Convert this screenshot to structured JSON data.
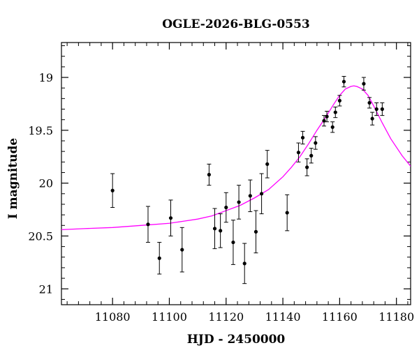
{
  "chart_data": {
    "type": "scatter",
    "title": "OGLE-2026-BLG-0553",
    "xlabel": "HJD - 2450000",
    "ylabel": "I magnitude",
    "xlim": [
      11062,
      11185
    ],
    "ylim": [
      21.15,
      18.67
    ],
    "y_inverted": true,
    "grid": false,
    "x_ticks": [
      11080,
      11100,
      11120,
      11140,
      11160,
      11180
    ],
    "y_ticks": [
      19,
      19.5,
      20,
      20.5,
      21
    ],
    "x_tick_labels": [
      "11080",
      "11100",
      "11120",
      "11140",
      "11160",
      "11180"
    ],
    "y_tick_labels": [
      "19",
      "19.5",
      "20",
      "20.5",
      "21"
    ],
    "series": [
      {
        "kind": "points_with_errorbars",
        "color": "#000000",
        "points": [
          {
            "x": 11080.0,
            "y": 20.07,
            "err": 0.16
          },
          {
            "x": 11092.5,
            "y": 20.39,
            "err": 0.17
          },
          {
            "x": 11096.5,
            "y": 20.71,
            "err": 0.15
          },
          {
            "x": 11100.5,
            "y": 20.33,
            "err": 0.17
          },
          {
            "x": 11104.5,
            "y": 20.63,
            "err": 0.21
          },
          {
            "x": 11114.0,
            "y": 19.92,
            "err": 0.1
          },
          {
            "x": 11116.0,
            "y": 20.43,
            "err": 0.19
          },
          {
            "x": 11118.0,
            "y": 20.45,
            "err": 0.16
          },
          {
            "x": 11120.0,
            "y": 20.23,
            "err": 0.14
          },
          {
            "x": 11122.5,
            "y": 20.56,
            "err": 0.21
          },
          {
            "x": 11124.5,
            "y": 20.18,
            "err": 0.16
          },
          {
            "x": 11126.5,
            "y": 20.76,
            "err": 0.19
          },
          {
            "x": 11128.5,
            "y": 20.12,
            "err": 0.15
          },
          {
            "x": 11130.5,
            "y": 20.46,
            "err": 0.2
          },
          {
            "x": 11132.5,
            "y": 20.1,
            "err": 0.19
          },
          {
            "x": 11134.5,
            "y": 19.82,
            "err": 0.13
          },
          {
            "x": 11141.5,
            "y": 20.28,
            "err": 0.17
          },
          {
            "x": 11145.5,
            "y": 19.71,
            "err": 0.09
          },
          {
            "x": 11147.0,
            "y": 19.57,
            "err": 0.06
          },
          {
            "x": 11148.5,
            "y": 19.85,
            "err": 0.08
          },
          {
            "x": 11150.0,
            "y": 19.74,
            "err": 0.07
          },
          {
            "x": 11151.5,
            "y": 19.62,
            "err": 0.06
          },
          {
            "x": 11154.5,
            "y": 19.41,
            "err": 0.05
          },
          {
            "x": 11155.5,
            "y": 19.37,
            "err": 0.05
          },
          {
            "x": 11157.5,
            "y": 19.47,
            "err": 0.05
          },
          {
            "x": 11158.5,
            "y": 19.33,
            "err": 0.05
          },
          {
            "x": 11160.0,
            "y": 19.22,
            "err": 0.05
          },
          {
            "x": 11161.5,
            "y": 19.04,
            "err": 0.05
          },
          {
            "x": 11168.5,
            "y": 19.06,
            "err": 0.06
          },
          {
            "x": 11170.5,
            "y": 19.24,
            "err": 0.05
          },
          {
            "x": 11171.5,
            "y": 19.39,
            "err": 0.06
          },
          {
            "x": 11173.0,
            "y": 19.3,
            "err": 0.06
          },
          {
            "x": 11175.0,
            "y": 19.3,
            "err": 0.06
          }
        ]
      },
      {
        "kind": "line",
        "color": "#ff00ff",
        "x": [
          11062,
          11070,
          11080,
          11090,
          11100,
          11105,
          11110,
          11115,
          11120,
          11125,
          11130,
          11135,
          11140,
          11143,
          11146,
          11149,
          11152,
          11155,
          11158,
          11160,
          11162,
          11164,
          11165,
          11166,
          11168,
          11170,
          11172,
          11175,
          11178,
          11182,
          11185
        ],
        "y": [
          20.44,
          20.43,
          20.42,
          20.4,
          20.38,
          20.36,
          20.34,
          20.31,
          20.26,
          20.21,
          20.14,
          20.06,
          19.94,
          19.85,
          19.75,
          19.63,
          19.5,
          19.38,
          19.25,
          19.17,
          19.11,
          19.085,
          19.08,
          19.085,
          19.11,
          19.17,
          19.27,
          19.43,
          19.58,
          19.74,
          19.84
        ]
      }
    ]
  }
}
